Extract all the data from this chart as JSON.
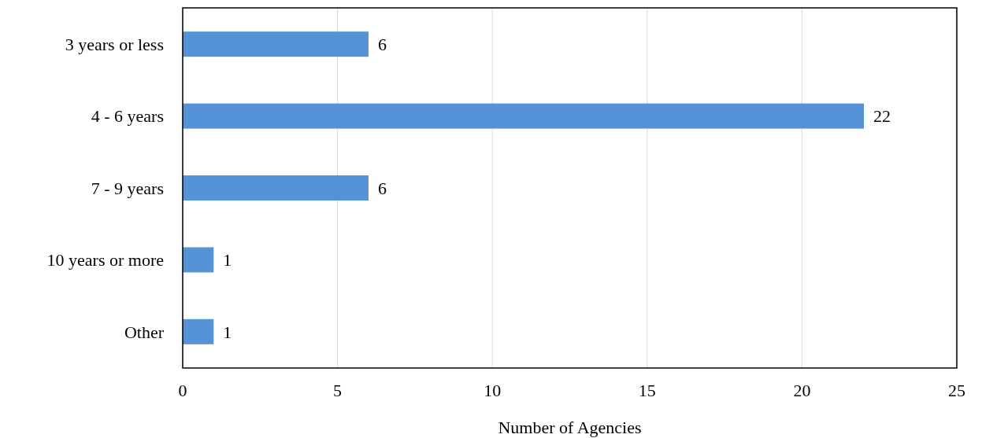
{
  "chart_data": {
    "type": "bar",
    "orientation": "horizontal",
    "xlabel": "Number of Agencies",
    "categories": [
      "3 years or less",
      "4 - 6 years",
      "7 - 9 years",
      "10 years or more",
      "Other"
    ],
    "values": [
      6,
      22,
      6,
      1,
      1
    ],
    "color": "#5592d6",
    "xlim": [
      0,
      25
    ],
    "xticks": [
      0,
      5,
      10,
      15,
      20,
      25
    ],
    "grid": "x",
    "data_labels": true
  }
}
